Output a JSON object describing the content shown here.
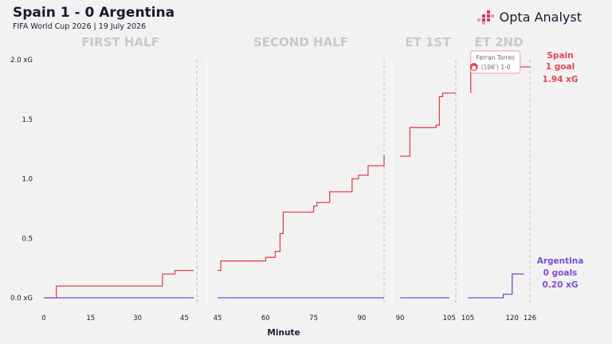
{
  "header": {
    "title": "Spain 1 - 0 Argentina",
    "subtitle": "FIFA World Cup 2026 | 19 July 2026",
    "brand": "Opta Analyst"
  },
  "colors": {
    "spain": "#e0454f",
    "argentina": "#7b4bd1",
    "brand": "#d6336c",
    "period_label": "#c9c8cb",
    "divider": "#c8c6ca"
  },
  "chart_data": {
    "type": "line",
    "subtype": "cumulative-xG step chart",
    "xlabel": "Minute",
    "ylim": [
      0,
      2.0
    ],
    "yticks": [
      {
        "value": 0,
        "label": "0.0 xG"
      },
      {
        "value": 0.5,
        "label": "0.5"
      },
      {
        "value": 1.0,
        "label": "1.0"
      },
      {
        "value": 1.5,
        "label": "1.5"
      },
      {
        "value": 2.0,
        "label": "2.0 xG"
      }
    ],
    "grid": false,
    "periods": [
      {
        "label": "FIRST HALF",
        "start": 0,
        "end": 49,
        "ticks": [
          {
            "value": 0,
            "label": "0"
          },
          {
            "value": 15,
            "label": "15"
          },
          {
            "value": 30,
            "label": "30"
          },
          {
            "value": 45,
            "label": "45"
          }
        ]
      },
      {
        "label": "SECOND HALF",
        "start": 45,
        "end": 97,
        "ticks": [
          {
            "value": 45,
            "label": "45"
          },
          {
            "value": 60,
            "label": "60"
          },
          {
            "value": 75,
            "label": "75"
          },
          {
            "value": 90,
            "label": "90"
          }
        ]
      },
      {
        "label": "ET 1ST",
        "start": 90,
        "end": 107,
        "ticks": [
          {
            "value": 90,
            "label": "90"
          },
          {
            "value": 105,
            "label": "105"
          }
        ]
      },
      {
        "label": "ET 2ND",
        "start": 105,
        "end": 126,
        "ticks": [
          {
            "value": 105,
            "label": "105"
          },
          {
            "value": 120,
            "label": "120"
          },
          {
            "value": 126,
            "label": "126"
          }
        ]
      }
    ],
    "series": [
      {
        "name": "Spain",
        "color": "#e0454f",
        "goals_label": "1 goal",
        "xg_label": "1.94 xG",
        "segments": [
          [
            [
              0,
              0
            ],
            [
              4,
              0
            ],
            [
              4,
              0.1
            ],
            [
              38,
              0.1
            ],
            [
              38,
              0.2
            ],
            [
              42,
              0.2
            ],
            [
              42,
              0.23
            ],
            [
              48,
              0.23
            ]
          ],
          [
            [
              45,
              0.23
            ],
            [
              46,
              0.23
            ],
            [
              46,
              0.31
            ],
            [
              60,
              0.31
            ],
            [
              60,
              0.34
            ],
            [
              63,
              0.34
            ],
            [
              63,
              0.39
            ],
            [
              64.5,
              0.39
            ],
            [
              64.5,
              0.54
            ],
            [
              65.5,
              0.54
            ],
            [
              65.5,
              0.72
            ],
            [
              75,
              0.72
            ],
            [
              75,
              0.77
            ],
            [
              76,
              0.77
            ],
            [
              76,
              0.8
            ],
            [
              80,
              0.8
            ],
            [
              80,
              0.89
            ],
            [
              87,
              0.89
            ],
            [
              87,
              1.0
            ],
            [
              89,
              1.0
            ],
            [
              89,
              1.03
            ],
            [
              92,
              1.03
            ],
            [
              92,
              1.11
            ],
            [
              97,
              1.11
            ],
            [
              97,
              1.2
            ]
          ],
          [
            [
              90,
              1.19
            ],
            [
              93,
              1.19
            ],
            [
              93,
              1.43
            ],
            [
              101,
              1.43
            ],
            [
              101,
              1.45
            ],
            [
              102,
              1.45
            ],
            [
              102,
              1.69
            ],
            [
              103,
              1.69
            ],
            [
              103,
              1.72
            ],
            [
              107,
              1.72
            ]
          ],
          [
            [
              106,
              1.72
            ],
            [
              106,
              1.94
            ],
            [
              126,
              1.94
            ]
          ]
        ]
      },
      {
        "name": "Argentina",
        "color": "#7b4bd1",
        "goals_label": "0 goals",
        "xg_label": "0.20 xG",
        "segments": [
          [
            [
              0,
              0
            ],
            [
              48,
              0
            ]
          ],
          [
            [
              45,
              0
            ],
            [
              97,
              0
            ]
          ],
          [
            [
              90,
              0
            ],
            [
              105,
              0
            ]
          ],
          [
            [
              105,
              0
            ],
            [
              117,
              0
            ],
            [
              117,
              0.03
            ],
            [
              120,
              0.03
            ],
            [
              120,
              0.2
            ],
            [
              124,
              0.2
            ]
          ]
        ]
      }
    ],
    "annotations": [
      {
        "minute": 106,
        "xg": 1.94,
        "team": "Spain",
        "player": "Ferran Torres",
        "detail": "(106') 1-0"
      }
    ]
  }
}
